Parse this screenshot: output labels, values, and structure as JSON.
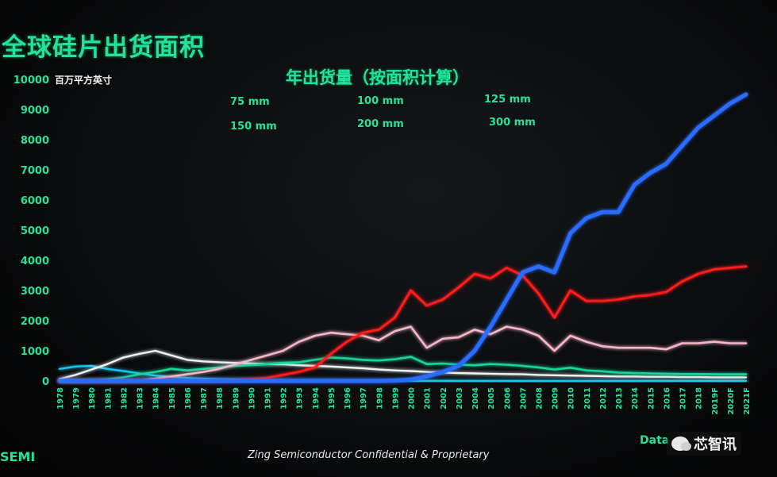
{
  "title": "全球硅片出货面积",
  "unit_label": "百万平方英寸",
  "footer": "Zing Semiconductor Confidential & Proprietary",
  "logo_text": "SEMI",
  "source_text": "Data",
  "watermark": {
    "text": "芯智讯",
    "icon": "wechat-icon"
  },
  "colors": {
    "accent": "#22e39a",
    "75 mm": "#19c7f0",
    "100 mm": "#eef2f5",
    "125 mm": "#18d59a",
    "150 mm": "#f5b6c8",
    "200 mm": "#ff1a1a",
    "300 mm": "#2a6cff"
  },
  "chart_data": {
    "type": "line",
    "title": "年出货量（按面积计算）",
    "ylabel": "百万平方英寸",
    "xlabel": "",
    "ylim": [
      0,
      10000
    ],
    "yticks": [
      0,
      1000,
      2000,
      3000,
      4000,
      5000,
      6000,
      7000,
      8000,
      9000,
      10000
    ],
    "grid": false,
    "legend_placement": "top-center",
    "x": [
      "1978",
      "1979",
      "1980",
      "1981",
      "1982",
      "1983",
      "1984",
      "1985",
      "1986",
      "1987",
      "1988",
      "1989",
      "1990",
      "1991",
      "1992",
      "1993",
      "1994",
      "1995",
      "1996",
      "1997",
      "1998",
      "1999",
      "2000",
      "2001",
      "2002",
      "2003",
      "2004",
      "2005",
      "2006",
      "2007",
      "2008",
      "2009",
      "2010",
      "2011",
      "2012",
      "2013",
      "2014",
      "2015",
      "2016",
      "2017",
      "2018",
      "2019F",
      "2020F",
      "2021F"
    ],
    "series": [
      {
        "name": "75 mm",
        "values": [
          400,
          480,
          500,
          400,
          330,
          250,
          180,
          130,
          100,
          80,
          60,
          50,
          40,
          30,
          25,
          20,
          15,
          12,
          10,
          8,
          6,
          5,
          5,
          4,
          4,
          3,
          3,
          3,
          2,
          2,
          2,
          2,
          2,
          2,
          2,
          2,
          2,
          2,
          2,
          2,
          2,
          2,
          2,
          2
        ]
      },
      {
        "name": "100 mm",
        "values": [
          60,
          200,
          380,
          560,
          780,
          900,
          1000,
          850,
          700,
          650,
          620,
          600,
          580,
          560,
          550,
          520,
          500,
          480,
          450,
          420,
          380,
          350,
          330,
          300,
          280,
          260,
          250,
          240,
          230,
          220,
          200,
          190,
          180,
          170,
          160,
          150,
          150,
          140,
          140,
          130,
          130,
          120,
          120,
          120
        ]
      },
      {
        "name": "125 mm",
        "values": [
          0,
          0,
          10,
          50,
          120,
          220,
          300,
          400,
          350,
          400,
          450,
          500,
          530,
          560,
          600,
          620,
          700,
          780,
          750,
          700,
          680,
          720,
          800,
          560,
          580,
          540,
          520,
          560,
          540,
          500,
          450,
          380,
          440,
          350,
          320,
          280,
          260,
          250,
          240,
          230,
          230,
          220,
          220,
          220
        ]
      },
      {
        "name": "150 mm",
        "values": [
          0,
          0,
          0,
          0,
          0,
          20,
          80,
          150,
          220,
          300,
          400,
          550,
          700,
          850,
          1000,
          1300,
          1500,
          1600,
          1550,
          1500,
          1350,
          1650,
          1800,
          1100,
          1400,
          1450,
          1700,
          1550,
          1800,
          1700,
          1500,
          1000,
          1500,
          1300,
          1150,
          1100,
          1100,
          1100,
          1050,
          1250,
          1250,
          1300,
          1250,
          1250
        ]
      },
      {
        "name": "200 mm",
        "values": [
          0,
          0,
          0,
          0,
          0,
          0,
          0,
          0,
          0,
          0,
          0,
          20,
          60,
          100,
          200,
          300,
          450,
          900,
          1300,
          1600,
          1700,
          2100,
          3000,
          2500,
          2700,
          3100,
          3550,
          3400,
          3750,
          3500,
          2900,
          2100,
          3000,
          2650,
          2650,
          2700,
          2800,
          2850,
          2950,
          3300,
          3550,
          3700,
          3750,
          3800
        ]
      },
      {
        "name": "300 mm",
        "values": [
          0,
          0,
          0,
          0,
          0,
          0,
          0,
          0,
          0,
          0,
          0,
          0,
          0,
          0,
          0,
          0,
          0,
          0,
          0,
          0,
          0,
          10,
          50,
          150,
          300,
          500,
          1000,
          1800,
          2700,
          3600,
          3800,
          3600,
          4900,
          5400,
          5600,
          5600,
          6500,
          6900,
          7200,
          7800,
          8400,
          8800,
          9200,
          9500
        ]
      }
    ]
  }
}
